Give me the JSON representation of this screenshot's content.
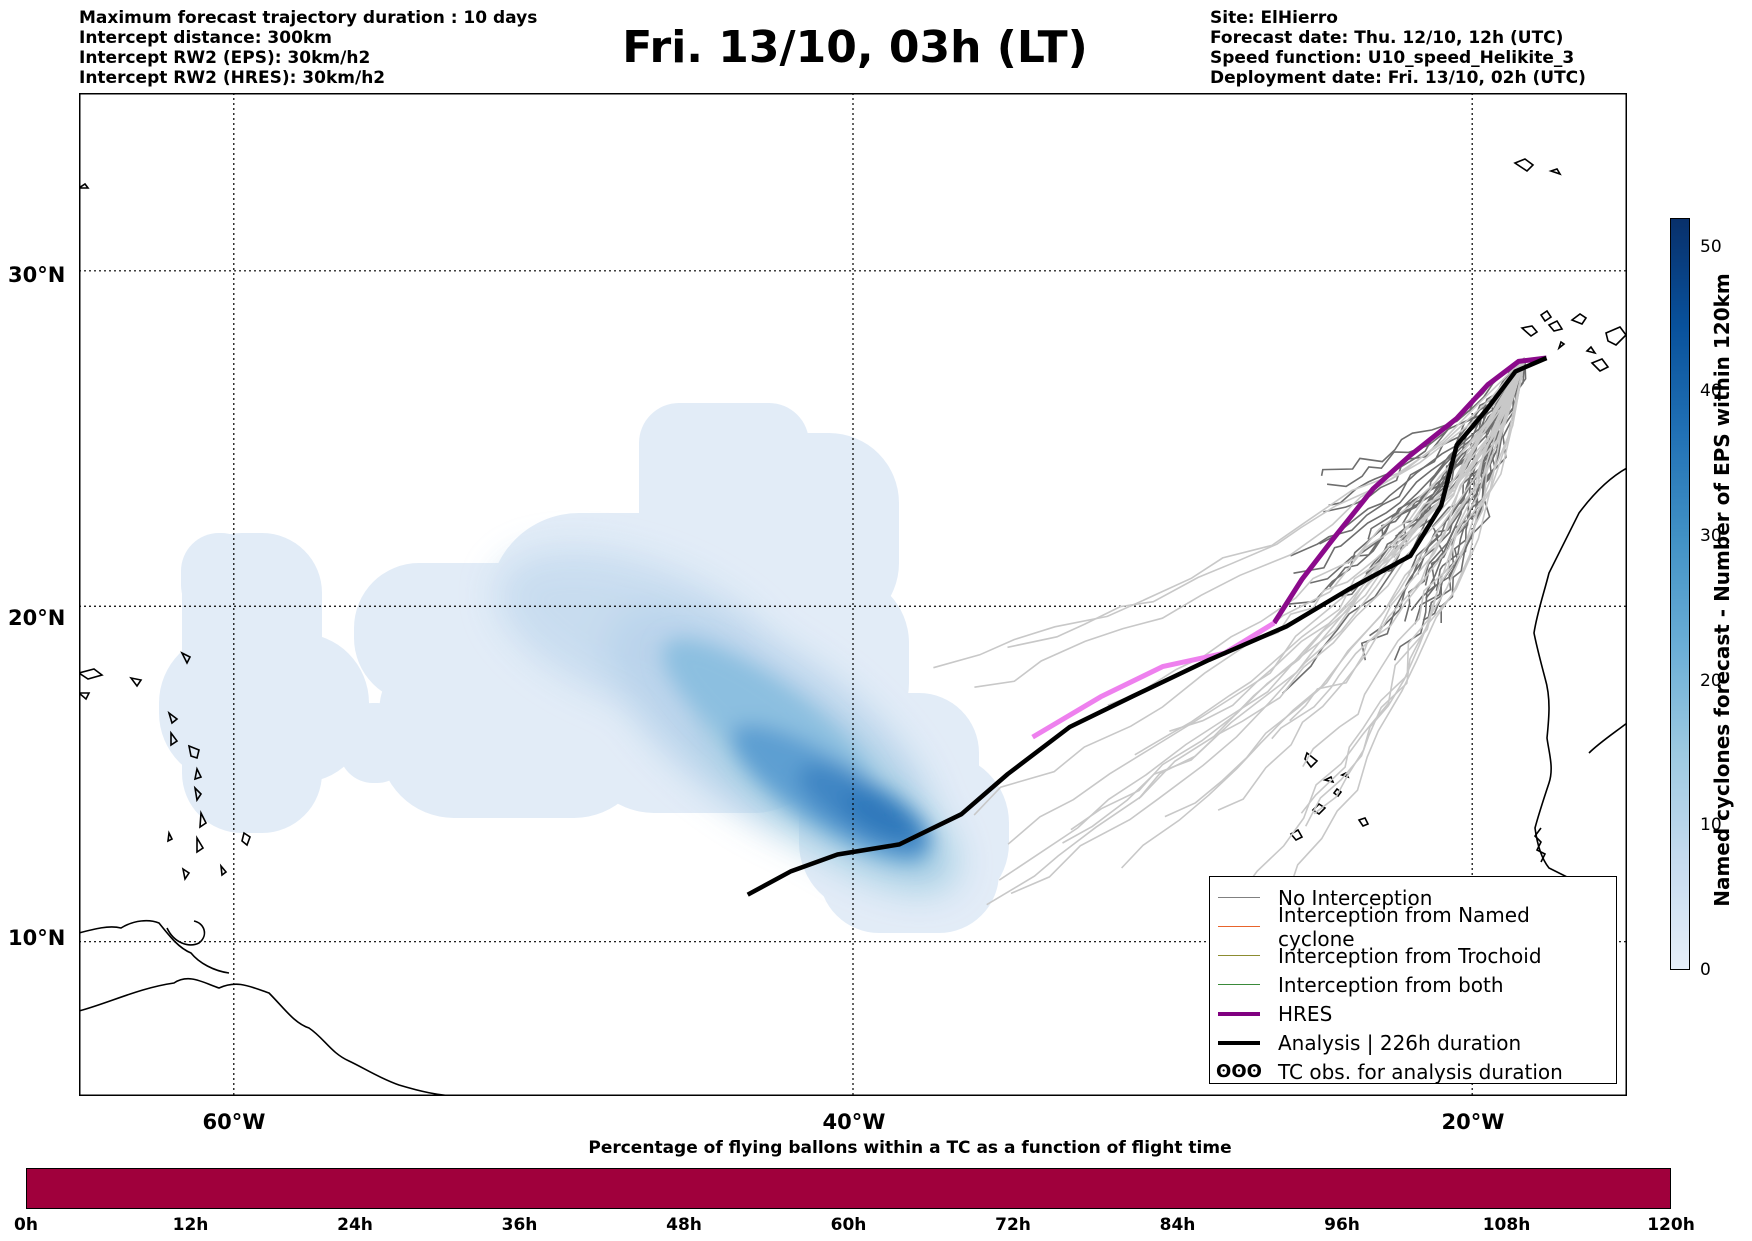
{
  "header": {
    "left_lines": [
      "Maximum forecast trajectory duration : 10 days",
      "Intercept distance: 300km",
      "Intercept RW2 (EPS):  30km/h2",
      "Intercept RW2 (HRES): 30km/h2"
    ],
    "title": "Fri. 13/10, 03h (LT)",
    "right_lines": [
      "Site: ElHierro",
      "Forecast date: Thu. 12/10, 12h (UTC)",
      "Speed function: U10_speed_Helikite_3",
      "Deployment date: Fri. 13/10, 02h (UTC)"
    ]
  },
  "map": {
    "lat_labels": [
      "30°N",
      "20°N",
      "10°N"
    ],
    "lon_labels": [
      "60°W",
      "40°W",
      "20°W"
    ],
    "gridlines": {
      "lon": [
        -60,
        -40,
        -20
      ],
      "lat": [
        30,
        20,
        10
      ]
    },
    "extent": {
      "lon_min": -65,
      "lon_max": -15,
      "lat_min": 5.4,
      "lat_max": 35.3
    },
    "site_lon": -18.3,
    "site_lat": 27.4
  },
  "legend": {
    "items": [
      {
        "label": "No Interception",
        "color": "#808080",
        "style": "thin"
      },
      {
        "label": "Interception from Named cyclone",
        "color": "#e8642c",
        "style": "thin"
      },
      {
        "label": "Interception from Trochoid",
        "color": "#8c8c30",
        "style": "thin"
      },
      {
        "label": "Interception from both",
        "color": "#3a8a3a",
        "style": "thin"
      },
      {
        "label": "HRES",
        "color": "#800080",
        "style": "thick"
      },
      {
        "label": "Analysis | 226h duration",
        "color": "#000000",
        "style": "thick"
      },
      {
        "label": "TC obs. for analysis duration",
        "color": "#000000",
        "style": "symbol",
        "symbol": "ʘʘʘ"
      }
    ]
  },
  "colorbar": {
    "label": "Named cyclones forecast - Number of EPS within 120km",
    "ticks": [
      "0",
      "10",
      "20",
      "30",
      "40",
      "50"
    ],
    "range": [
      0,
      52
    ]
  },
  "timebar": {
    "title": "Percentage of flying ballons within a TC as a function of flight time",
    "color": "#a0003c",
    "ticks": [
      "0h",
      "12h",
      "24h",
      "36h",
      "48h",
      "60h",
      "72h",
      "84h",
      "96h",
      "108h",
      "120h"
    ]
  },
  "tracks": {
    "hres": [
      [
        -17.6,
        27.4
      ],
      [
        -18.5,
        27.3
      ],
      [
        -19.5,
        26.6
      ],
      [
        -20.5,
        25.6
      ],
      [
        -22,
        24.5
      ],
      [
        -23.2,
        23.5
      ],
      [
        -24.5,
        22.0
      ],
      [
        -25.5,
        20.8
      ],
      [
        -26.4,
        19.5
      ],
      [
        -28.0,
        18.6
      ],
      [
        -30.0,
        18.2
      ],
      [
        -32.0,
        17.3
      ],
      [
        -34.2,
        16.1
      ]
    ],
    "analysis": [
      [
        -17.6,
        27.4
      ],
      [
        -18.6,
        27.0
      ],
      [
        -19.5,
        25.9
      ],
      [
        -20.5,
        24.8
      ],
      [
        -21.0,
        23.0
      ],
      [
        -22.0,
        21.5
      ],
      [
        -24.0,
        20.5
      ],
      [
        -26.0,
        19.4
      ],
      [
        -28.5,
        18.4
      ],
      [
        -31.0,
        17.3
      ],
      [
        -33.0,
        16.4
      ],
      [
        -35.0,
        15.0
      ],
      [
        -36.5,
        13.8
      ],
      [
        -38.5,
        12.9
      ],
      [
        -40.5,
        12.6
      ],
      [
        -42.0,
        12.1
      ],
      [
        -43.4,
        11.4
      ]
    ]
  }
}
